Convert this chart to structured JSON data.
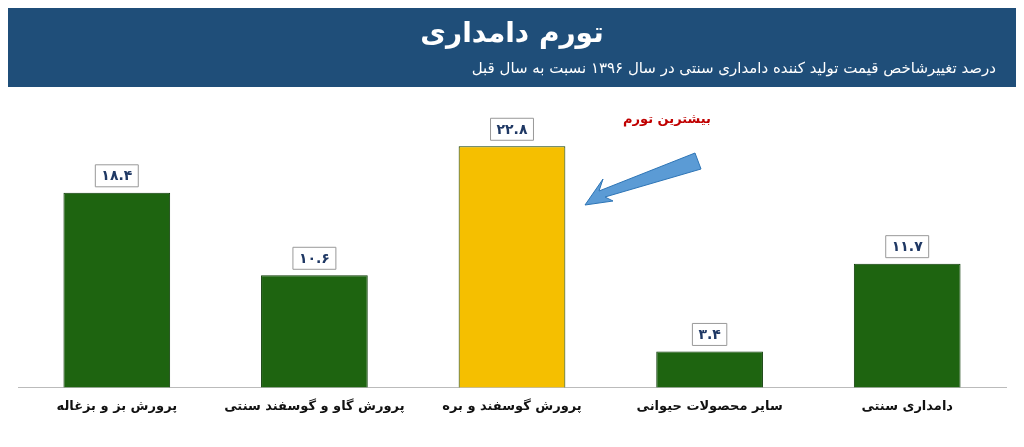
{
  "chart_data": {
    "type": "bar",
    "title": "تورم دامداری",
    "subtitle": "درصد تغییرشاخص قیمت تولید کننده دامداری سنتی در سال ۱۳۹۶ نسبت به سال قبل",
    "categories": [
      "پرورش بز و بزغاله",
      "پرورش گاو و گوسفند سنتی",
      "پرورش گوسفند و بره",
      "سایر محصولات حیوانی",
      "دامداری سنتی"
    ],
    "values": [
      18.4,
      10.6,
      22.8,
      3.4,
      11.7
    ],
    "value_labels": [
      "۱۸.۴",
      "۱۰.۶",
      "۲۲.۸",
      "۳.۴",
      "۱۱.۷"
    ],
    "colors": [
      "#1e6410",
      "#1e6410",
      "#f5bf00",
      "#1e6410",
      "#1e6410"
    ],
    "annotations": [
      "بیشترین تورم"
    ],
    "legend": false
  }
}
